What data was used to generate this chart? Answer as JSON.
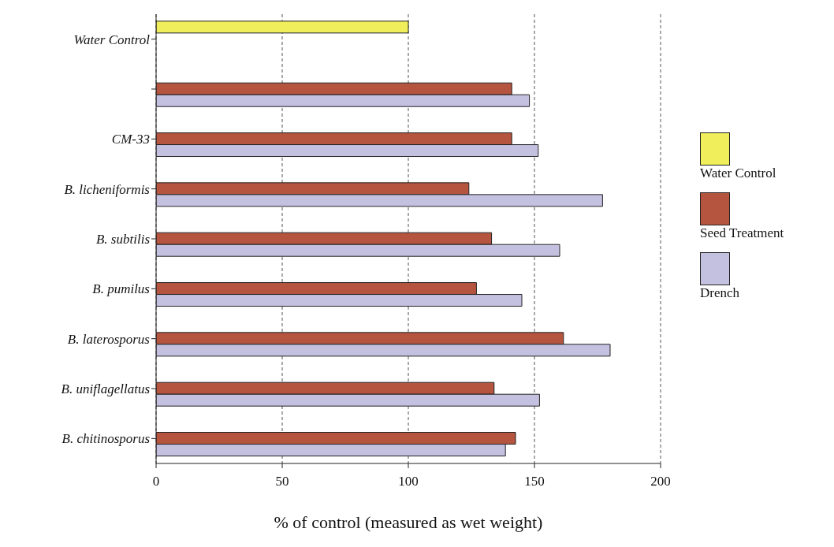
{
  "chart_data": {
    "type": "bar",
    "orientation": "horizontal",
    "xlabel": "% of control (measured as wet weight)",
    "categories": [
      "Water Control",
      null,
      "CM-33",
      "B. licheniformis",
      "B. subtilis",
      "B. pumilus",
      "B. laterosporus",
      "B. uniflagellatus",
      "B. chitinosporus"
    ],
    "series": [
      {
        "name": "Water Control",
        "color": "#f0ee5a",
        "values": [
          100,
          null,
          null,
          null,
          null,
          null,
          null,
          null,
          null
        ]
      },
      {
        "name": "Seed Treatment",
        "color": "#b5553f",
        "values": [
          null,
          141,
          141,
          124,
          133,
          127,
          161.5,
          134,
          142.5
        ]
      },
      {
        "name": "Drench",
        "color": "#c4c0e0",
        "values": [
          null,
          148,
          151.5,
          177,
          160,
          145,
          180,
          152,
          138.5
        ]
      }
    ],
    "xlim": [
      0,
      200
    ],
    "xticks": [
      0,
      50,
      100,
      150,
      200
    ],
    "grid": "x",
    "legend": "right"
  }
}
